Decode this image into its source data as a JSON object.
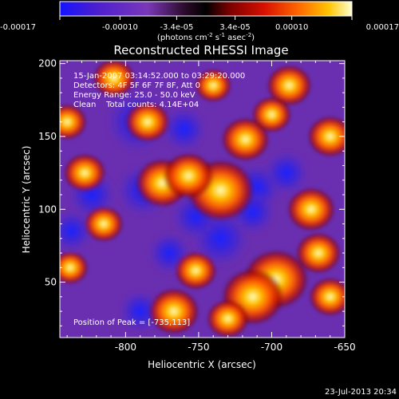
{
  "colorbar": {
    "ticks": [
      "-0.00017",
      "-0.00010",
      "-3.4e-05",
      "3.4e-05",
      "0.00010",
      "0.00017"
    ],
    "units_pre": "(photons cm",
    "units_exp1": "-2",
    "units_mid": " s",
    "units_exp2": "-1",
    "units_post": " asec",
    "units_exp3": "-2",
    "units_close": ")",
    "range": [
      -0.00017,
      0.00017
    ],
    "colors": [
      "#1414ff",
      "#4a1ed0",
      "#7a38b8",
      "#2a0a28",
      "#000000",
      "#7a0000",
      "#d81000",
      "#ff6a00",
      "#ffc400",
      "#ffffd0"
    ]
  },
  "annotations": {
    "time": "15-Jan-2007 03:14:52.000 to 03:29:20.000",
    "detectors": "Detectors: 4F 5F 6F 7F 8F, Att 0",
    "energy": "Energy Range: 25.0 - 50.0 keV",
    "method_counts": "Clean    Total counts: 4.14E+04",
    "peak": "Position of Peak = [-735,113]"
  },
  "footer": {
    "timestamp": "23-Jul-2013 20:34"
  },
  "chart_data": {
    "type": "heatmap",
    "title": "Reconstructed RHESSI Image",
    "xlabel": "Heliocentric X (arcsec)",
    "ylabel": "Heliocentric Y (arcsec)",
    "xlim": [
      -845,
      -650
    ],
    "ylim": [
      12,
      202
    ],
    "xticks": [
      -800,
      -750,
      -700,
      -650
    ],
    "yticks": [
      50,
      100,
      150,
      200
    ],
    "xtick_labels": [
      "-800",
      "-750",
      "-700",
      "-650"
    ],
    "ytick_labels": [
      "50",
      "100",
      "150",
      "200"
    ],
    "peak_position": [
      -735,
      113
    ],
    "bright_sources": [
      {
        "x": -735,
        "y": 113,
        "value": 0.00017
      },
      {
        "x": -697,
        "y": 52,
        "value": 0.00016
      },
      {
        "x": -713,
        "y": 40,
        "value": 0.00015
      },
      {
        "x": -775,
        "y": 118,
        "value": 0.00012
      },
      {
        "x": -757,
        "y": 123,
        "value": 0.00011
      },
      {
        "x": -718,
        "y": 148,
        "value": 0.0001
      },
      {
        "x": -673,
        "y": 100,
        "value": 0.0001
      },
      {
        "x": -668,
        "y": 70,
        "value": 9e-05
      },
      {
        "x": -767,
        "y": 30,
        "value": 0.00011
      },
      {
        "x": -752,
        "y": 58,
        "value": 8e-05
      },
      {
        "x": -785,
        "y": 160,
        "value": 9e-05
      },
      {
        "x": -808,
        "y": 190,
        "value": 8e-05
      },
      {
        "x": -828,
        "y": 125,
        "value": 8e-05
      },
      {
        "x": -815,
        "y": 90,
        "value": 7e-05
      },
      {
        "x": -840,
        "y": 160,
        "value": 7e-05
      },
      {
        "x": -838,
        "y": 60,
        "value": 6e-05
      },
      {
        "x": -688,
        "y": 185,
        "value": 9e-05
      },
      {
        "x": -660,
        "y": 150,
        "value": 9e-05
      },
      {
        "x": -700,
        "y": 165,
        "value": 7e-05
      },
      {
        "x": -660,
        "y": 40,
        "value": 8e-05
      },
      {
        "x": -740,
        "y": 185,
        "value": 6e-05
      },
      {
        "x": -730,
        "y": 25,
        "value": 8e-05
      }
    ],
    "dim_sources": [
      {
        "x": -792,
        "y": 160,
        "value": -0.00016
      },
      {
        "x": -788,
        "y": 113,
        "value": -0.00012
      },
      {
        "x": -735,
        "y": 80,
        "value": -0.00014
      },
      {
        "x": -752,
        "y": 95,
        "value": -0.0001
      },
      {
        "x": -823,
        "y": 110,
        "value": -0.0001
      },
      {
        "x": -710,
        "y": 115,
        "value": -0.0001
      },
      {
        "x": -690,
        "y": 125,
        "value": -9e-05
      },
      {
        "x": -760,
        "y": 155,
        "value": -9e-05
      },
      {
        "x": -790,
        "y": 30,
        "value": -8e-05
      },
      {
        "x": -713,
        "y": 98,
        "value": -9e-05
      },
      {
        "x": -837,
        "y": 85,
        "value": -8e-05
      },
      {
        "x": -770,
        "y": 70,
        "value": -8e-05
      }
    ]
  }
}
